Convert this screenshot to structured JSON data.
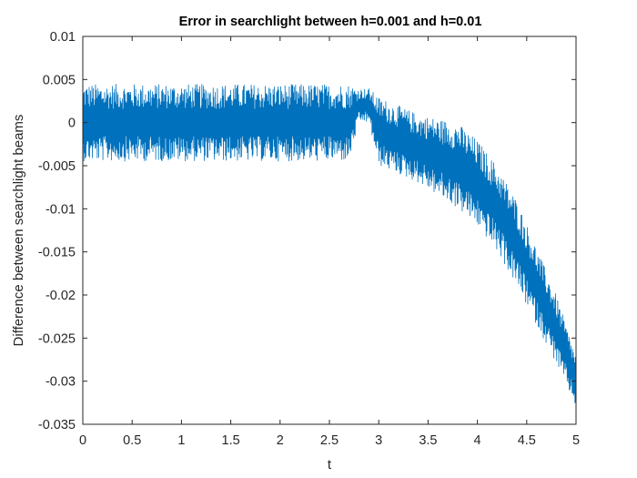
{
  "chart_data": {
    "type": "line",
    "title": "Error in searchlight between h=0.001 and h=0.01",
    "xlabel": "t",
    "ylabel": "Difference between searchlight beams",
    "xlim": [
      0,
      5
    ],
    "ylim": [
      -0.035,
      0.01
    ],
    "xticks": [
      "0",
      "0.5",
      "1",
      "1.5",
      "2",
      "2.5",
      "3",
      "3.5",
      "4",
      "4.5",
      "5"
    ],
    "yticks": [
      "0.01",
      "0.005",
      "0",
      "-0.005",
      "-0.01",
      "-0.015",
      "-0.02",
      "-0.025",
      "-0.03",
      "-0.035"
    ],
    "grid": false,
    "legend": "none",
    "series": [
      {
        "color": "#0072BD",
        "x": [
          0,
          0.5,
          1.0,
          1.5,
          2.0,
          2.5,
          2.7,
          2.8,
          2.9,
          3.0,
          3.2,
          3.4,
          3.6,
          3.8,
          4.0,
          4.2,
          4.4,
          4.6,
          4.8,
          5.0
        ],
        "y_mean": [
          0,
          0,
          0,
          0,
          0,
          0,
          0,
          0.002,
          0.002,
          -0.001,
          -0.002,
          -0.003,
          -0.004,
          -0.005,
          -0.007,
          -0.01,
          -0.014,
          -0.019,
          -0.024,
          -0.03
        ],
        "y_band": [
          0.0045,
          0.0045,
          0.0045,
          0.0045,
          0.0045,
          0.0045,
          0.0045,
          0.002,
          0.002,
          0.004,
          0.004,
          0.004,
          0.0045,
          0.005,
          0.005,
          0.005,
          0.005,
          0.0045,
          0.004,
          0.003
        ]
      }
    ]
  }
}
